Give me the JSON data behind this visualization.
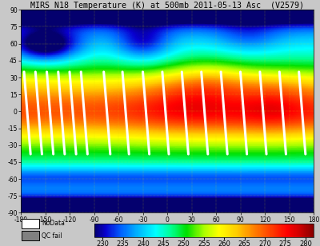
{
  "title": "MIRS N18 Temperature (K) at 500mb 2011-05-13 Asc  (V2579)",
  "title_fontsize": 7.2,
  "xlim": [
    -180,
    180
  ],
  "ylim": [
    -90,
    90
  ],
  "xticks": [
    -180,
    -150,
    -120,
    -90,
    -60,
    -30,
    0,
    30,
    60,
    90,
    120,
    150,
    180
  ],
  "yticks": [
    -90,
    -75,
    -60,
    -45,
    -30,
    -15,
    0,
    15,
    30,
    45,
    60,
    75,
    90
  ],
  "tick_fontsize": 5.5,
  "colorbar_ticks": [
    230,
    235,
    240,
    245,
    250,
    255,
    260,
    265,
    270,
    275,
    280
  ],
  "colorbar_label_fontsize": 6,
  "background_color": "#c8c8c8",
  "grid_color": "#dddd00",
  "grid_alpha": 0.7,
  "grid_linewidth": 0.35,
  "coast_color": "black",
  "coast_linewidth": 0.6,
  "border_linewidth": 0.4,
  "state_linewidth": 0.3,
  "orbit_color": "white",
  "orbit_linewidth": 2.2,
  "orbit_segments": [
    [
      [
        -176,
        35
      ],
      [
        -168,
        -38
      ]
    ],
    [
      [
        -162,
        35
      ],
      [
        -154,
        -38
      ]
    ],
    [
      [
        -148,
        35
      ],
      [
        -140,
        -38
      ]
    ],
    [
      [
        -134,
        35
      ],
      [
        -126,
        -38
      ]
    ],
    [
      [
        -120,
        35
      ],
      [
        -112,
        -38
      ]
    ],
    [
      [
        -106,
        35
      ],
      [
        -98,
        -38
      ]
    ],
    [
      [
        -78,
        35
      ],
      [
        -70,
        -38
      ]
    ],
    [
      [
        -55,
        35
      ],
      [
        -47,
        -38
      ]
    ],
    [
      [
        -30,
        35
      ],
      [
        -22,
        -38
      ]
    ],
    [
      [
        -6,
        35
      ],
      [
        2,
        -38
      ]
    ],
    [
      [
        18,
        35
      ],
      [
        26,
        -38
      ]
    ],
    [
      [
        42,
        35
      ],
      [
        50,
        -38
      ]
    ],
    [
      [
        66,
        35
      ],
      [
        74,
        -38
      ]
    ],
    [
      [
        90,
        35
      ],
      [
        98,
        -38
      ]
    ],
    [
      [
        114,
        35
      ],
      [
        122,
        -38
      ]
    ],
    [
      [
        138,
        35
      ],
      [
        146,
        -38
      ]
    ],
    [
      [
        162,
        35
      ],
      [
        170,
        -38
      ]
    ]
  ],
  "nodata_box_color": "white",
  "nodata_box_edgecolor": "black",
  "qcfail_box_color": "#808080",
  "qcfail_box_edgecolor": "black",
  "legend_fontsize": 5.5,
  "temp_min": 228,
  "temp_max": 282,
  "cmap_colors": [
    [
      0.0,
      "#04006e"
    ],
    [
      0.05,
      "#0800d0"
    ],
    [
      0.12,
      "#0060ff"
    ],
    [
      0.2,
      "#00b8ff"
    ],
    [
      0.28,
      "#00ffff"
    ],
    [
      0.35,
      "#00ff90"
    ],
    [
      0.42,
      "#00e000"
    ],
    [
      0.5,
      "#aaff00"
    ],
    [
      0.57,
      "#ffff00"
    ],
    [
      0.65,
      "#ffcc00"
    ],
    [
      0.72,
      "#ff8800"
    ],
    [
      0.8,
      "#ff4400"
    ],
    [
      0.88,
      "#ff0000"
    ],
    [
      0.94,
      "#cc0000"
    ],
    [
      1.0,
      "#880000"
    ]
  ]
}
